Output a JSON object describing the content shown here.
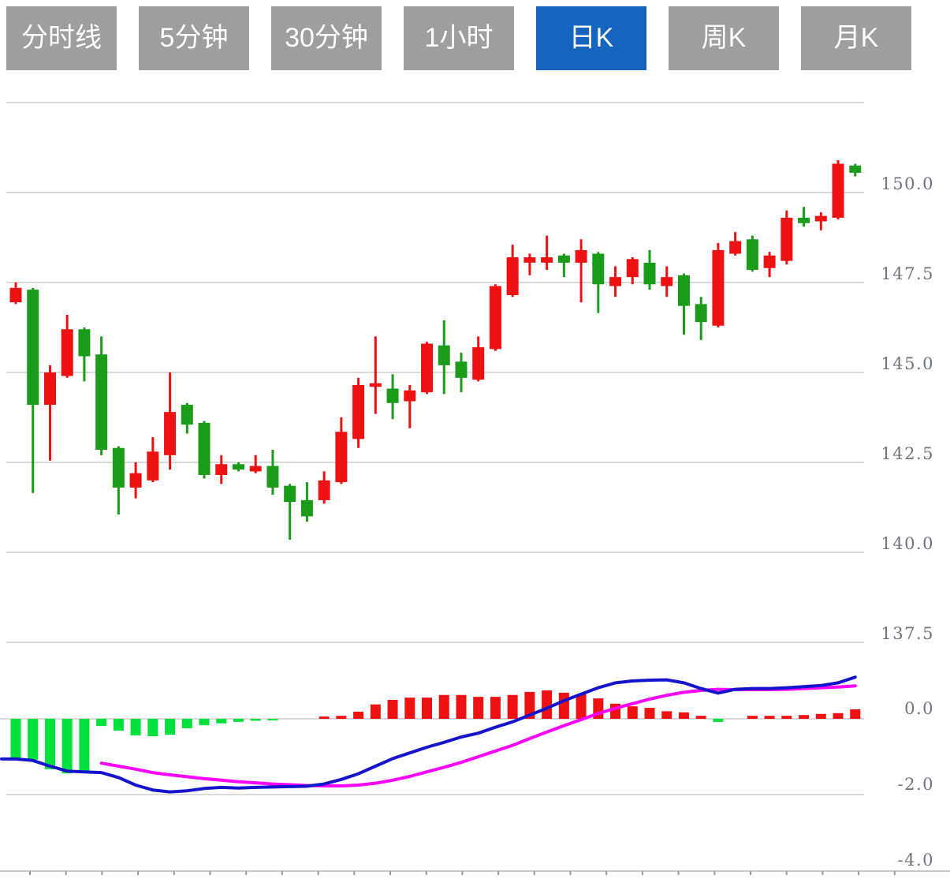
{
  "tabs": [
    {
      "label": "分时线",
      "active": false
    },
    {
      "label": "5分钟",
      "active": false
    },
    {
      "label": "30分钟",
      "active": false
    },
    {
      "label": "1小时",
      "active": false
    },
    {
      "label": "日K",
      "active": true
    },
    {
      "label": "周K",
      "active": false
    },
    {
      "label": "月K",
      "active": false
    }
  ],
  "chart_data": {
    "type": "candlestick_with_macd",
    "title": "",
    "legend_position": "none",
    "grid": true,
    "price_axis": {
      "side": "right",
      "ylim": [
        136.3,
        152.6
      ],
      "gridline_values": [
        152.5,
        150.0,
        147.5,
        145.0,
        142.5,
        140.0,
        137.5
      ],
      "ticks": [
        {
          "value": 150.0,
          "label": "150.0"
        },
        {
          "value": 147.5,
          "label": "147.5"
        },
        {
          "value": 145.0,
          "label": "145.0"
        },
        {
          "value": 142.5,
          "label": "142.5"
        },
        {
          "value": 140.0,
          "label": "140.0"
        },
        {
          "value": 137.5,
          "label": "137.5"
        }
      ]
    },
    "macd_axis": {
      "side": "right",
      "ylim": [
        -4.1,
        1.35
      ],
      "ticks": [
        {
          "value": 0,
          "label": "0.0"
        },
        {
          "value": -2,
          "label": "-2.0"
        },
        {
          "value": -4,
          "label": "-4.0"
        }
      ]
    },
    "candles_ohlc": [
      [
        146.95,
        147.5,
        146.9,
        147.35
      ],
      [
        147.3,
        147.35,
        141.65,
        144.1
      ],
      [
        144.1,
        145.2,
        142.55,
        145.0
      ],
      [
        144.9,
        146.6,
        144.85,
        146.2
      ],
      [
        146.2,
        146.25,
        144.75,
        145.45
      ],
      [
        145.5,
        146.0,
        142.7,
        142.85
      ],
      [
        142.9,
        142.95,
        141.05,
        141.8
      ],
      [
        141.8,
        142.5,
        141.5,
        142.2
      ],
      [
        142.0,
        143.2,
        141.95,
        142.8
      ],
      [
        142.7,
        145.0,
        142.3,
        143.9
      ],
      [
        144.1,
        144.15,
        143.3,
        143.55
      ],
      [
        143.6,
        143.65,
        142.05,
        142.15
      ],
      [
        142.15,
        142.7,
        141.9,
        142.45
      ],
      [
        142.45,
        142.5,
        142.25,
        142.3
      ],
      [
        142.25,
        142.7,
        142.2,
        142.4
      ],
      [
        142.4,
        142.85,
        141.6,
        141.8
      ],
      [
        141.85,
        141.9,
        140.35,
        141.4
      ],
      [
        141.45,
        141.95,
        140.85,
        141.0
      ],
      [
        141.45,
        142.25,
        141.35,
        142.0
      ],
      [
        141.95,
        143.75,
        141.9,
        143.35
      ],
      [
        143.15,
        144.85,
        142.9,
        144.65
      ],
      [
        144.6,
        146.0,
        143.85,
        144.7
      ],
      [
        144.55,
        144.95,
        143.7,
        144.15
      ],
      [
        144.2,
        144.65,
        143.45,
        144.5
      ],
      [
        144.45,
        145.85,
        144.4,
        145.8
      ],
      [
        145.75,
        146.45,
        144.4,
        145.2
      ],
      [
        145.3,
        145.55,
        144.45,
        144.85
      ],
      [
        144.8,
        146.0,
        144.75,
        145.7
      ],
      [
        145.65,
        147.45,
        145.6,
        147.4
      ],
      [
        147.15,
        148.55,
        147.1,
        148.2
      ],
      [
        148.05,
        148.3,
        147.7,
        148.2
      ],
      [
        148.05,
        148.8,
        147.85,
        148.2
      ],
      [
        148.25,
        148.3,
        147.65,
        148.05
      ],
      [
        148.05,
        148.7,
        146.95,
        148.4
      ],
      [
        148.3,
        148.35,
        146.65,
        147.45
      ],
      [
        147.4,
        147.95,
        147.1,
        147.65
      ],
      [
        147.65,
        148.2,
        147.45,
        148.15
      ],
      [
        148.05,
        148.4,
        147.3,
        147.45
      ],
      [
        147.4,
        147.95,
        147.1,
        147.65
      ],
      [
        147.7,
        147.75,
        146.05,
        146.85
      ],
      [
        146.9,
        147.1,
        145.9,
        146.4
      ],
      [
        146.3,
        148.6,
        146.25,
        148.4
      ],
      [
        148.3,
        148.9,
        148.25,
        148.65
      ],
      [
        148.7,
        148.8,
        147.8,
        147.85
      ],
      [
        147.9,
        148.35,
        147.65,
        148.25
      ],
      [
        148.1,
        149.5,
        148.0,
        149.3
      ],
      [
        149.3,
        149.6,
        149.05,
        149.15
      ],
      [
        149.2,
        149.45,
        148.95,
        149.35
      ],
      [
        149.3,
        150.9,
        149.25,
        150.8
      ],
      [
        150.75,
        150.8,
        150.45,
        150.55
      ]
    ],
    "macd": {
      "histogram": [
        -1.06,
        -1.08,
        -1.33,
        -1.44,
        -1.4,
        -0.19,
        -0.31,
        -0.44,
        -0.46,
        -0.42,
        -0.25,
        -0.17,
        -0.12,
        -0.08,
        -0.05,
        -0.03,
        0,
        0,
        0.06,
        0.08,
        0.19,
        0.38,
        0.5,
        0.56,
        0.56,
        0.63,
        0.63,
        0.58,
        0.58,
        0.63,
        0.71,
        0.75,
        0.69,
        0.65,
        0.54,
        0.4,
        0.33,
        0.29,
        0.2,
        0.17,
        0.08,
        -0.08,
        0,
        0.08,
        0.08,
        0.08,
        0.1,
        0.13,
        0.15,
        0.25
      ],
      "dif": [
        -1.06,
        -1.1,
        -1.25,
        -1.38,
        -1.4,
        -1.42,
        -1.55,
        -1.75,
        -1.88,
        -1.93,
        -1.9,
        -1.84,
        -1.81,
        -1.83,
        -1.81,
        -1.8,
        -1.79,
        -1.78,
        -1.72,
        -1.6,
        -1.45,
        -1.25,
        -1.05,
        -0.9,
        -0.75,
        -0.62,
        -0.48,
        -0.38,
        -0.22,
        -0.08,
        0.1,
        0.28,
        0.48,
        0.65,
        0.82,
        0.95,
        1.0,
        1.02,
        1.03,
        0.95,
        0.8,
        0.68,
        0.78,
        0.8,
        0.8,
        0.82,
        0.85,
        0.88,
        0.95,
        1.1
      ],
      "dea": [
        null,
        null,
        null,
        null,
        null,
        -1.17,
        -1.25,
        -1.33,
        -1.42,
        -1.48,
        -1.53,
        -1.58,
        -1.62,
        -1.66,
        -1.69,
        -1.72,
        -1.74,
        -1.76,
        -1.77,
        -1.77,
        -1.75,
        -1.7,
        -1.62,
        -1.52,
        -1.4,
        -1.28,
        -1.15,
        -1.0,
        -0.85,
        -0.7,
        -0.52,
        -0.35,
        -0.18,
        -0.02,
        0.14,
        0.28,
        0.4,
        0.52,
        0.62,
        0.7,
        0.75,
        0.78,
        0.77,
        0.77,
        0.77,
        0.78,
        0.8,
        0.82,
        0.84,
        0.87
      ]
    },
    "colors": {
      "up": "#ee1111",
      "down": "#1a9c1a",
      "hist_up": "#ee1111",
      "hist_down": "#00e13c",
      "dif_line": "#1414cd",
      "dea_line": "#fb00fb",
      "grid": "#d9d9d9",
      "axis_label": "#6e7580",
      "axis_line": "#c9c9c9",
      "axis_tick": "#999999",
      "tab_bg": "#9e9e9e",
      "tab_active": "#1565bf",
      "tab_text": "#ffffff"
    }
  }
}
